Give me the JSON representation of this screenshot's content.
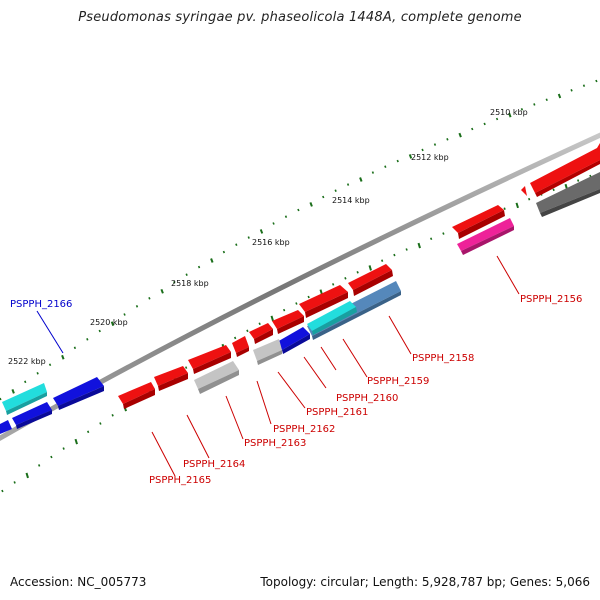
{
  "title": "Pseudomonas syringae pv. phaseolicola 1448A, complete genome",
  "footer": {
    "accession": "Accession: NC_005773",
    "summary": "Topology: circular; Length: 5,928,787 bp; Genes: 5,066"
  },
  "colors": {
    "backbone": "#8a8a8a",
    "tick": "#1a6e1a",
    "red": "#ee1111",
    "blue": "#1111dd",
    "cyan": "#22dddd",
    "steelblue": "#5588bb",
    "grey": "#c4c4c4",
    "darkgrey": "#6a6a6a",
    "magenta": "#ee2299",
    "label_red": "#cc0000",
    "label_blue": "#0000cc"
  },
  "tick_labels": [
    "2510 kbp",
    "2512 kbp",
    "2514 kbp",
    "2516 kbp",
    "2518 kbp",
    "2520 kbp",
    "2522 kbp"
  ],
  "gene_labels": [
    {
      "id": "PSPPH_2156",
      "color": "red"
    },
    {
      "id": "PSPPH_2158",
      "color": "red"
    },
    {
      "id": "PSPPH_2159",
      "color": "red"
    },
    {
      "id": "PSPPH_2160",
      "color": "red"
    },
    {
      "id": "PSPPH_2161",
      "color": "red"
    },
    {
      "id": "PSPPH_2162",
      "color": "red"
    },
    {
      "id": "PSPPH_2163",
      "color": "red"
    },
    {
      "id": "PSPPH_2164",
      "color": "red"
    },
    {
      "id": "PSPPH_2165",
      "color": "red"
    },
    {
      "id": "PSPPH_2166",
      "color": "blue"
    }
  ]
}
